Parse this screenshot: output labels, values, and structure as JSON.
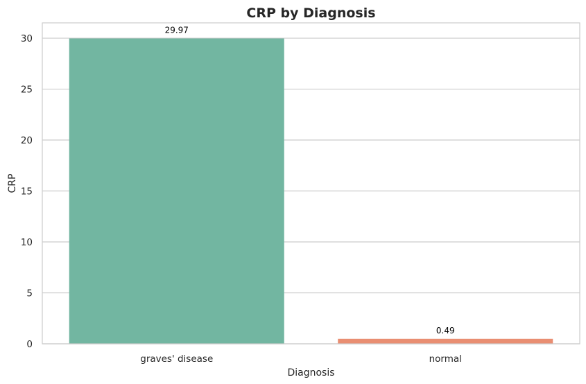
{
  "chart_data": {
    "type": "bar",
    "title": "CRP by Diagnosis",
    "xlabel": "Diagnosis",
    "ylabel": "CRP",
    "categories": [
      "graves' disease",
      "normal"
    ],
    "values": [
      29.97,
      0.49
    ],
    "value_labels": [
      "29.97",
      "0.49"
    ],
    "colors": [
      "#72b6a1",
      "#e98e72"
    ],
    "ylim": [
      0,
      31.5
    ],
    "yticks": [
      0,
      5,
      10,
      15,
      20,
      25,
      30
    ],
    "ytick_labels": [
      "0",
      "5",
      "10",
      "15",
      "20",
      "25",
      "30"
    ],
    "grid": "horizontal"
  }
}
